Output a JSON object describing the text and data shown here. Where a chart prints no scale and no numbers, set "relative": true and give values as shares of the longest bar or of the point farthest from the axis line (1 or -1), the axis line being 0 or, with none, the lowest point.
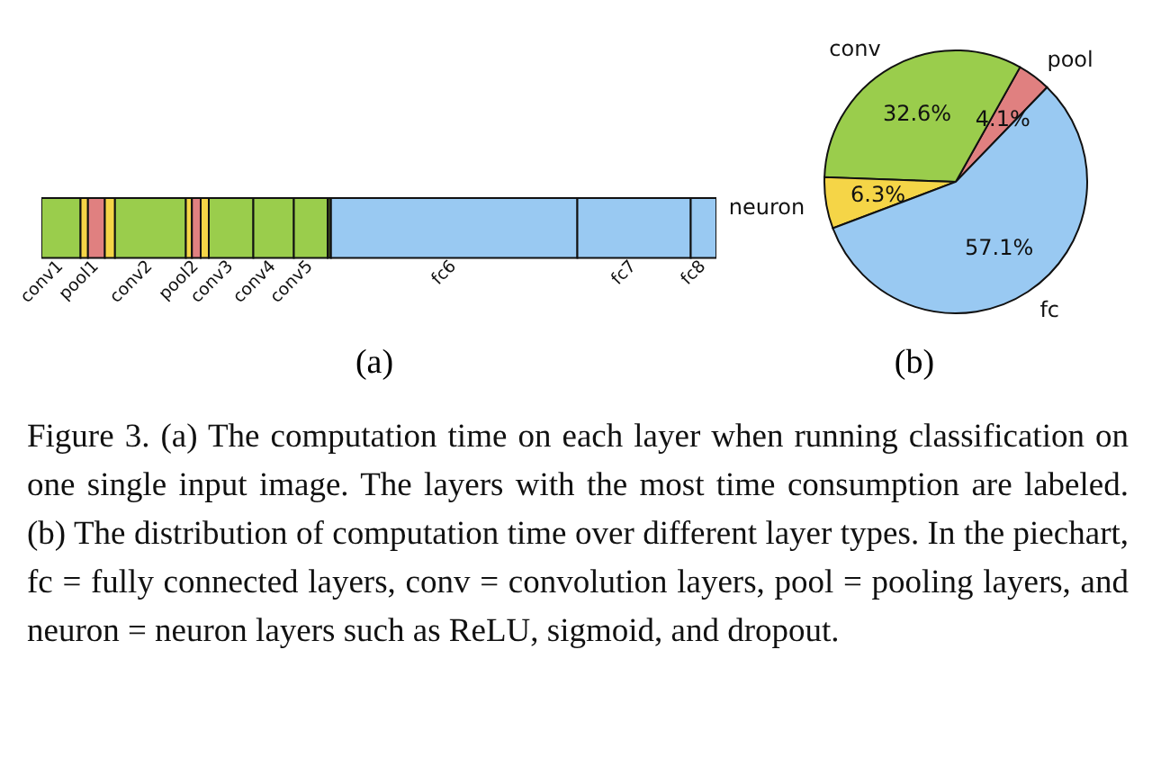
{
  "chart_data": [
    {
      "type": "bar",
      "title": "(a)",
      "orientation": "horizontal",
      "stacked": true,
      "relative": true,
      "categories": [
        null
      ],
      "series": [
        {
          "name": "conv1",
          "color": "#9acd4c",
          "values": [
            0.058
          ]
        },
        {
          "color": "#f5d547",
          "values": [
            0.011
          ]
        },
        {
          "name": "pool1",
          "color": "#e08080",
          "values": [
            0.025
          ]
        },
        {
          "color": "#f5d547",
          "values": [
            0.015
          ]
        },
        {
          "name": "conv2",
          "color": "#9acd4c",
          "values": [
            0.105
          ]
        },
        {
          "color": "#f5d547",
          "values": [
            0.009
          ]
        },
        {
          "name": "pool2",
          "color": "#e08080",
          "values": [
            0.013
          ]
        },
        {
          "color": "#f5d547",
          "values": [
            0.012
          ]
        },
        {
          "name": "conv3",
          "color": "#9acd4c",
          "values": [
            0.066
          ]
        },
        {
          "name": "conv4",
          "color": "#9acd4c",
          "values": [
            0.06
          ]
        },
        {
          "name": "conv5",
          "color": "#9acd4c",
          "values": [
            0.05
          ]
        },
        {
          "color": "#3d4a1e",
          "values": [
            0.005
          ]
        },
        {
          "name": "fc6",
          "color": "#99c9f2",
          "values": [
            0.365
          ]
        },
        {
          "name": "fc7",
          "color": "#99c9f2",
          "values": [
            0.168
          ]
        },
        {
          "name": "fc8",
          "color": "#99c9f2",
          "values": [
            0.038
          ]
        }
      ]
    },
    {
      "type": "pie",
      "title": "(b)",
      "categories": [
        "pool",
        "conv",
        "neuron",
        "fc"
      ],
      "values": [
        4.1,
        32.6,
        6.3,
        57.1
      ],
      "colors": [
        "#e08080",
        "#9acd4c",
        "#f5d547",
        "#99c9f2"
      ],
      "value_labels": [
        "4.1%",
        "32.6%",
        "6.3%",
        "57.1%"
      ],
      "annotations": [
        "Figure 3. (a) The computation time on each layer when running classification on one single input image. The layers with the most time consumption are labeled. (b) The distribution of computation time over different layer types. In the piechart, fc = fully connected layers, conv = convolution layers, pool = pooling layers, and neuron = neuron layers such as ReLU, sigmoid, and dropout."
      ]
    }
  ]
}
